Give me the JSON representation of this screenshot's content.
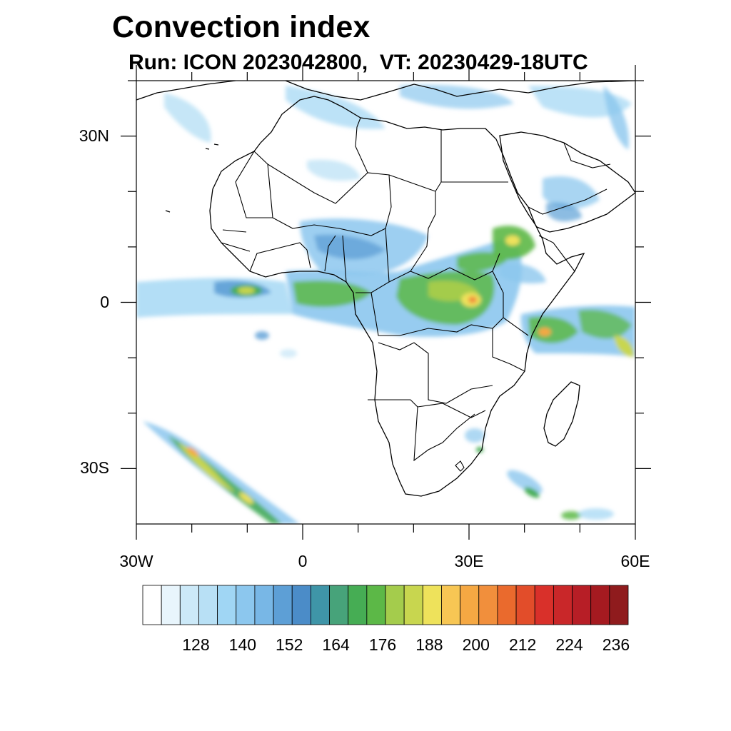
{
  "title": "Convection index",
  "subtitle": "Run: ICON 2023042800,  VT: 20230429-18UTC",
  "map": {
    "lon_range": [
      -30,
      60
    ],
    "lat_range": [
      -40,
      40
    ],
    "lat_labels": [
      {
        "lat": 30,
        "text": "30N"
      },
      {
        "lat": 0,
        "text": "0"
      },
      {
        "lat": -30,
        "text": "30S"
      }
    ],
    "lon_labels": [
      {
        "lon": -30,
        "text": "30W"
      },
      {
        "lon": 0,
        "text": "0"
      },
      {
        "lon": 30,
        "text": "30E"
      },
      {
        "lon": 60,
        "text": "60E"
      }
    ]
  },
  "colorbar": {
    "colors": [
      "#ffffff",
      "#e8f5fc",
      "#cce9f8",
      "#b8e0f5",
      "#a0d6f4",
      "#8cc7ee",
      "#78b7e6",
      "#5d9fd6",
      "#4b8cc8",
      "#3f95a8",
      "#47a37a",
      "#46ad54",
      "#5cb847",
      "#a4cc4c",
      "#c8d64f",
      "#eee25b",
      "#f7c654",
      "#f5a843",
      "#f18f3c",
      "#ea6a2d",
      "#e24d2a",
      "#d9302a",
      "#c92729",
      "#b71e26",
      "#a51a20",
      "#8f1b1d"
    ],
    "labels": [
      "128",
      "140",
      "152",
      "164",
      "176",
      "188",
      "200",
      "212",
      "224",
      "236"
    ]
  }
}
